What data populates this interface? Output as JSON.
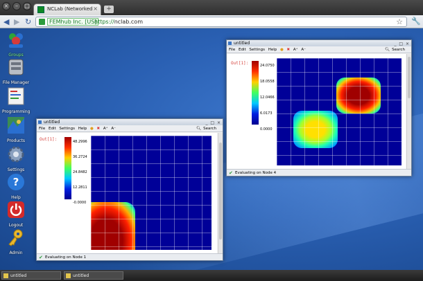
{
  "browser": {
    "tab_title": "NCLab (Networked Comp",
    "tab_close": "×",
    "new_tab": "+",
    "back": "◀",
    "forward": "▶",
    "reload": "↻",
    "secure_label": "FEMhub Inc. [US]",
    "url_scheme": "https://",
    "url_host": "nclab.com",
    "star": "☆",
    "wrench": "🔧"
  },
  "desktop_icons": [
    {
      "label": "Groups",
      "icon": "groups-icon",
      "color": "#2fa33a"
    },
    {
      "label": "File Manager",
      "icon": "file-manager-icon",
      "color": "#b9bec6"
    },
    {
      "label": "Programming",
      "icon": "programming-icon",
      "color": "#f2f2f2"
    },
    {
      "label": "Products",
      "icon": "products-icon",
      "color": "#3c8c52"
    },
    {
      "label": "Settings",
      "icon": "settings-gear-icon",
      "color": "#8aa0bf"
    },
    {
      "label": "Help",
      "icon": "help-icon",
      "color": "#2a78d8"
    },
    {
      "label": "Logout",
      "icon": "logout-icon",
      "color": "#d42a2a"
    },
    {
      "label": "Admin",
      "icon": "admin-key-icon",
      "color": "#e9b72c"
    }
  ],
  "windows": {
    "left": {
      "title": "untitled",
      "menu": [
        "File",
        "Edit",
        "Settings",
        "Help"
      ],
      "search": "Search",
      "cell_label": "Out[1]:",
      "colorbar_ticks": [
        "48.2996",
        "36.2724",
        "24.8482",
        "12.2811",
        "-0.0000"
      ],
      "status": "Evaluating on Node 1"
    },
    "right": {
      "title": "untitled",
      "menu": [
        "File",
        "Edit",
        "Settings",
        "Help"
      ],
      "search": "Search",
      "cell_label": "Out[1]:",
      "colorbar_ticks": [
        "24.0750",
        "18.0558",
        "12.0466",
        "6.0173",
        "0.0000"
      ],
      "status": "Evaluating on Node 4"
    }
  },
  "taskbar": {
    "items": [
      "untitled",
      "untitled"
    ]
  },
  "colors": {
    "desktop": "#2a60b3",
    "accent_green": "#157a25"
  }
}
